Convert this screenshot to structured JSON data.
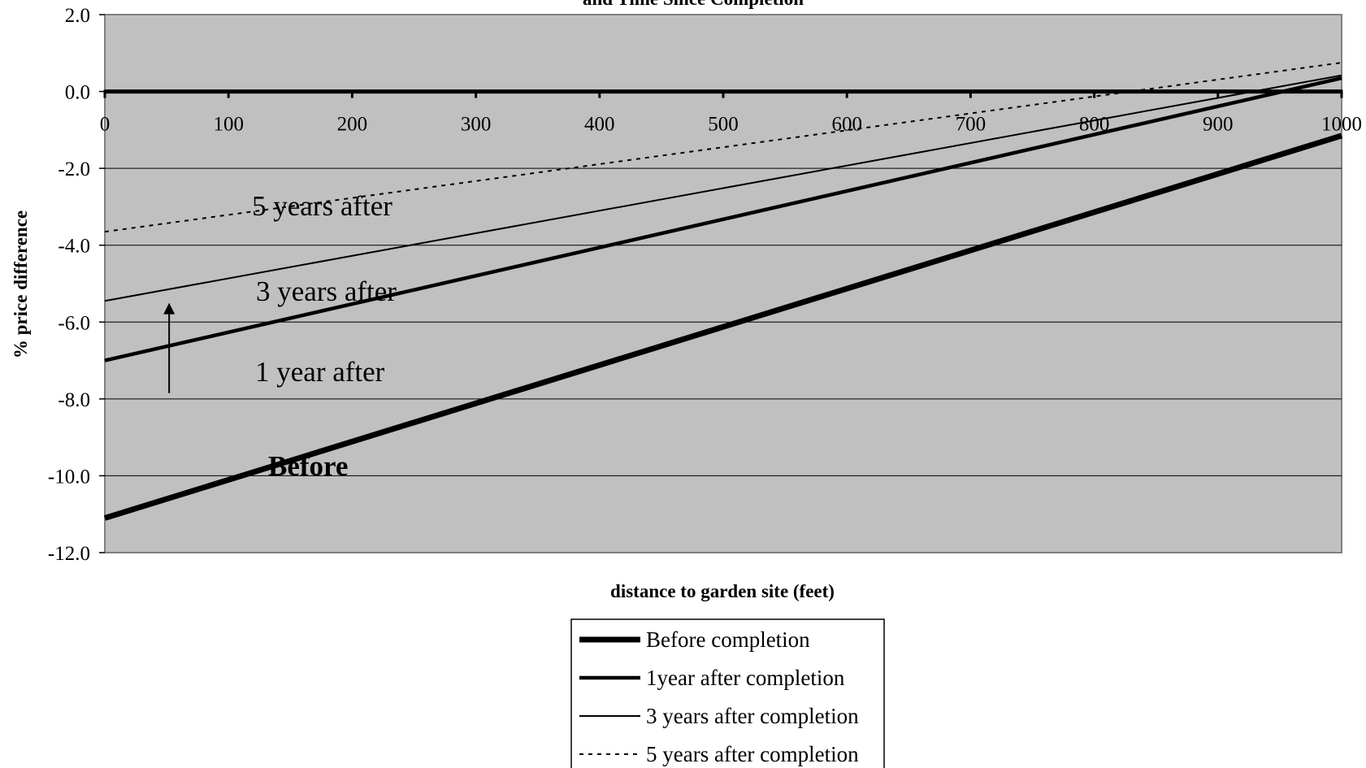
{
  "chart_data": {
    "type": "line",
    "title": "and Time Since Completion",
    "xlabel": "distance to garden site (feet)",
    "ylabel": "% price difference",
    "xlim": [
      0,
      1000
    ],
    "ylim": [
      -12,
      2
    ],
    "x_ticks": [
      "0",
      "100",
      "200",
      "300",
      "400",
      "500",
      "600",
      "700",
      "800",
      "900",
      "1000"
    ],
    "y_ticks": [
      "2.0",
      "0.0",
      "-2.0",
      "-4.0",
      "-6.0",
      "-8.0",
      "-10.0",
      "-12.0"
    ],
    "grid": true,
    "plot_background": "#c0c0c0",
    "series": [
      {
        "name": "Before completion",
        "style": "thick-solid",
        "x": [
          0,
          1000
        ],
        "y": [
          -11.1,
          -1.15
        ]
      },
      {
        "name": "1year after completion",
        "style": "medium-solid",
        "x": [
          0,
          1000
        ],
        "y": [
          -7.0,
          0.35
        ]
      },
      {
        "name": "3 years after completion",
        "style": "thin-solid",
        "x": [
          0,
          1000
        ],
        "y": [
          -5.45,
          0.42
        ]
      },
      {
        "name": "5 years after completion",
        "style": "dotted",
        "x": [
          0,
          1000
        ],
        "y": [
          -3.65,
          0.75
        ]
      }
    ],
    "annotations": [
      {
        "text": "5 years after",
        "style": "normal"
      },
      {
        "text": "3 years after",
        "style": "normal"
      },
      {
        "text": "1 year after",
        "style": "normal"
      },
      {
        "text": "Before",
        "style": "bold"
      }
    ],
    "arrow": {
      "x": 52,
      "y_from": -7.85,
      "y_to": -5.5
    },
    "legend_position": "bottom-center"
  }
}
